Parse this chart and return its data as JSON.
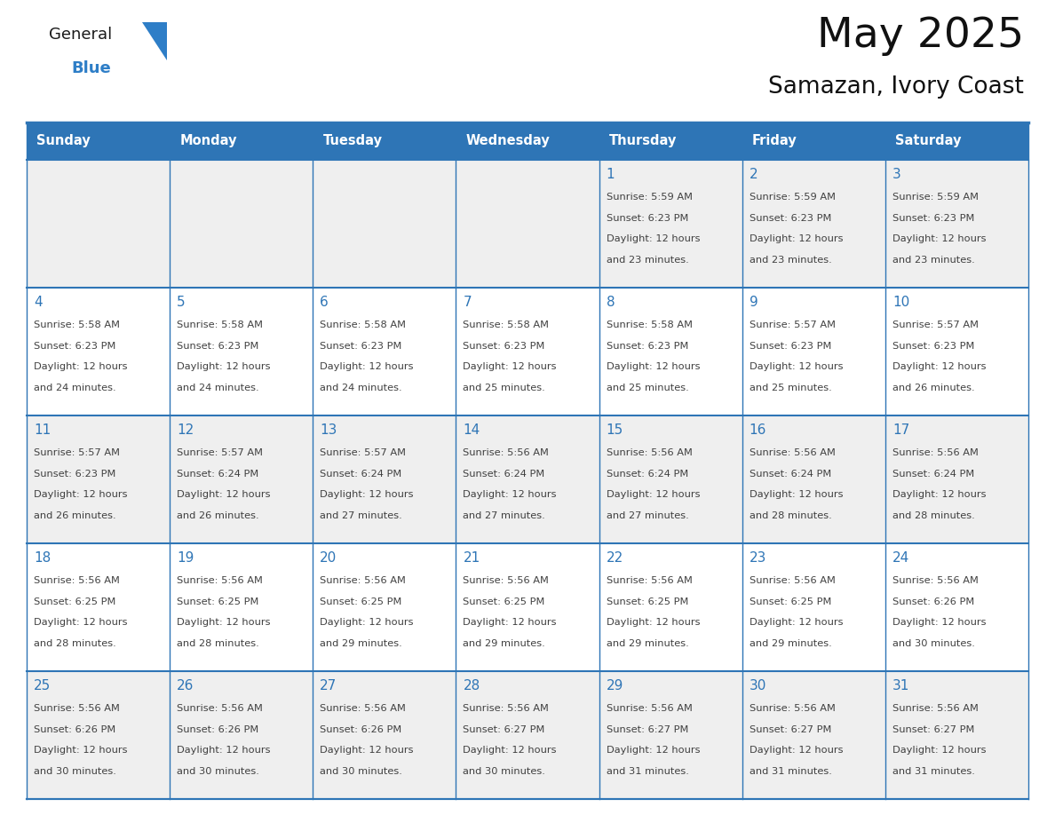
{
  "title": "May 2025",
  "subtitle": "Samazan, Ivory Coast",
  "header_bg": "#2E75B6",
  "header_text_color": "#FFFFFF",
  "cell_bg_light": "#EFEFEF",
  "cell_bg_white": "#FFFFFF",
  "day_number_color": "#2E75B6",
  "text_color": "#404040",
  "border_color": "#2E75B6",
  "days_of_week": [
    "Sunday",
    "Monday",
    "Tuesday",
    "Wednesday",
    "Thursday",
    "Friday",
    "Saturday"
  ],
  "calendar_data": [
    [
      {
        "day": "",
        "sunrise": "",
        "sunset": "",
        "daylight": ""
      },
      {
        "day": "",
        "sunrise": "",
        "sunset": "",
        "daylight": ""
      },
      {
        "day": "",
        "sunrise": "",
        "sunset": "",
        "daylight": ""
      },
      {
        "day": "",
        "sunrise": "",
        "sunset": "",
        "daylight": ""
      },
      {
        "day": "1",
        "sunrise": "5:59 AM",
        "sunset": "6:23 PM",
        "daylight": "12 hours and 23 minutes."
      },
      {
        "day": "2",
        "sunrise": "5:59 AM",
        "sunset": "6:23 PM",
        "daylight": "12 hours and 23 minutes."
      },
      {
        "day": "3",
        "sunrise": "5:59 AM",
        "sunset": "6:23 PM",
        "daylight": "12 hours and 23 minutes."
      }
    ],
    [
      {
        "day": "4",
        "sunrise": "5:58 AM",
        "sunset": "6:23 PM",
        "daylight": "12 hours and 24 minutes."
      },
      {
        "day": "5",
        "sunrise": "5:58 AM",
        "sunset": "6:23 PM",
        "daylight": "12 hours and 24 minutes."
      },
      {
        "day": "6",
        "sunrise": "5:58 AM",
        "sunset": "6:23 PM",
        "daylight": "12 hours and 24 minutes."
      },
      {
        "day": "7",
        "sunrise": "5:58 AM",
        "sunset": "6:23 PM",
        "daylight": "12 hours and 25 minutes."
      },
      {
        "day": "8",
        "sunrise": "5:58 AM",
        "sunset": "6:23 PM",
        "daylight": "12 hours and 25 minutes."
      },
      {
        "day": "9",
        "sunrise": "5:57 AM",
        "sunset": "6:23 PM",
        "daylight": "12 hours and 25 minutes."
      },
      {
        "day": "10",
        "sunrise": "5:57 AM",
        "sunset": "6:23 PM",
        "daylight": "12 hours and 26 minutes."
      }
    ],
    [
      {
        "day": "11",
        "sunrise": "5:57 AM",
        "sunset": "6:23 PM",
        "daylight": "12 hours and 26 minutes."
      },
      {
        "day": "12",
        "sunrise": "5:57 AM",
        "sunset": "6:24 PM",
        "daylight": "12 hours and 26 minutes."
      },
      {
        "day": "13",
        "sunrise": "5:57 AM",
        "sunset": "6:24 PM",
        "daylight": "12 hours and 27 minutes."
      },
      {
        "day": "14",
        "sunrise": "5:56 AM",
        "sunset": "6:24 PM",
        "daylight": "12 hours and 27 minutes."
      },
      {
        "day": "15",
        "sunrise": "5:56 AM",
        "sunset": "6:24 PM",
        "daylight": "12 hours and 27 minutes."
      },
      {
        "day": "16",
        "sunrise": "5:56 AM",
        "sunset": "6:24 PM",
        "daylight": "12 hours and 28 minutes."
      },
      {
        "day": "17",
        "sunrise": "5:56 AM",
        "sunset": "6:24 PM",
        "daylight": "12 hours and 28 minutes."
      }
    ],
    [
      {
        "day": "18",
        "sunrise": "5:56 AM",
        "sunset": "6:25 PM",
        "daylight": "12 hours and 28 minutes."
      },
      {
        "day": "19",
        "sunrise": "5:56 AM",
        "sunset": "6:25 PM",
        "daylight": "12 hours and 28 minutes."
      },
      {
        "day": "20",
        "sunrise": "5:56 AM",
        "sunset": "6:25 PM",
        "daylight": "12 hours and 29 minutes."
      },
      {
        "day": "21",
        "sunrise": "5:56 AM",
        "sunset": "6:25 PM",
        "daylight": "12 hours and 29 minutes."
      },
      {
        "day": "22",
        "sunrise": "5:56 AM",
        "sunset": "6:25 PM",
        "daylight": "12 hours and 29 minutes."
      },
      {
        "day": "23",
        "sunrise": "5:56 AM",
        "sunset": "6:25 PM",
        "daylight": "12 hours and 29 minutes."
      },
      {
        "day": "24",
        "sunrise": "5:56 AM",
        "sunset": "6:26 PM",
        "daylight": "12 hours and 30 minutes."
      }
    ],
    [
      {
        "day": "25",
        "sunrise": "5:56 AM",
        "sunset": "6:26 PM",
        "daylight": "12 hours and 30 minutes."
      },
      {
        "day": "26",
        "sunrise": "5:56 AM",
        "sunset": "6:26 PM",
        "daylight": "12 hours and 30 minutes."
      },
      {
        "day": "27",
        "sunrise": "5:56 AM",
        "sunset": "6:26 PM",
        "daylight": "12 hours and 30 minutes."
      },
      {
        "day": "28",
        "sunrise": "5:56 AM",
        "sunset": "6:27 PM",
        "daylight": "12 hours and 30 minutes."
      },
      {
        "day": "29",
        "sunrise": "5:56 AM",
        "sunset": "6:27 PM",
        "daylight": "12 hours and 31 minutes."
      },
      {
        "day": "30",
        "sunrise": "5:56 AM",
        "sunset": "6:27 PM",
        "daylight": "12 hours and 31 minutes."
      },
      {
        "day": "31",
        "sunrise": "5:56 AM",
        "sunset": "6:27 PM",
        "daylight": "12 hours and 31 minutes."
      }
    ]
  ],
  "logo_general_color": "#1a1a1a",
  "logo_blue_color": "#2E7EC7",
  "row_bg_colors": [
    "#EFEFEF",
    "#FFFFFF",
    "#EFEFEF",
    "#FFFFFF",
    "#EFEFEF"
  ]
}
